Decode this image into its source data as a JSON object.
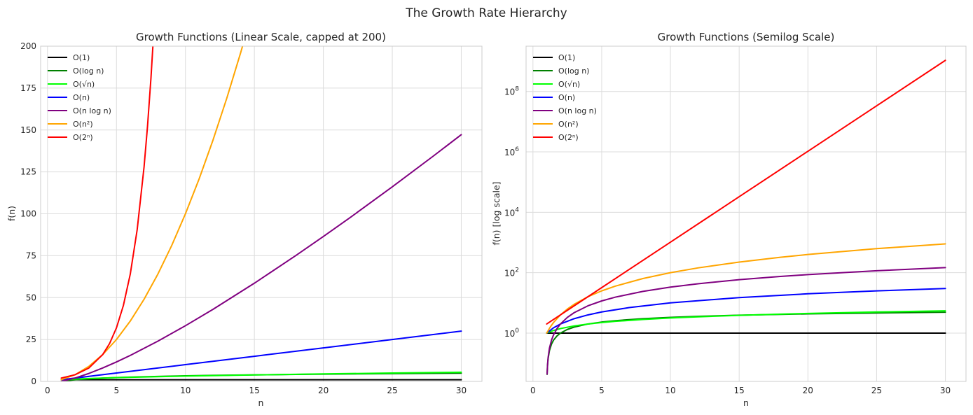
{
  "figure": {
    "suptitle": "The Growth Rate Hierarchy"
  },
  "legend_labels": [
    "O(1)",
    "O(log n)",
    "O(√n)",
    "O(n)",
    "O(n log n)",
    "O(n²)",
    "O(2ⁿ)"
  ],
  "chart_data": [
    {
      "type": "line",
      "title": "Growth Functions (Linear Scale, capped at 200)",
      "xlabel": "n",
      "ylabel": "f(n)",
      "xlim": [
        -0.5,
        31.5
      ],
      "ylim": [
        0,
        200
      ],
      "yscale": "linear",
      "xticks": [
        0,
        5,
        10,
        15,
        20,
        25,
        30
      ],
      "xtick_labels": [
        "0",
        "5",
        "10",
        "15",
        "20",
        "25",
        "30"
      ],
      "yticks": [
        0,
        25,
        50,
        75,
        100,
        125,
        150,
        175,
        200
      ],
      "ytick_labels": [
        "0",
        "25",
        "50",
        "75",
        "100",
        "125",
        "150",
        "175",
        "200"
      ],
      "grid": true,
      "legend_position": "upper-left",
      "series": [
        {
          "name": "O(1)",
          "color": "#000000",
          "x": [
            1,
            2,
            3,
            5,
            10,
            15,
            20,
            25,
            30
          ],
          "y": [
            1,
            1,
            1,
            1,
            1,
            1,
            1,
            1,
            1
          ]
        },
        {
          "name": "O(log n)",
          "color": "#008000",
          "x": [
            1,
            2,
            3,
            4,
            5,
            6,
            8,
            10,
            12,
            15,
            18,
            20,
            25,
            30
          ],
          "y": [
            0,
            1,
            1.58,
            2,
            2.32,
            2.58,
            3,
            3.32,
            3.58,
            3.91,
            4.17,
            4.32,
            4.64,
            4.91
          ]
        },
        {
          "name": "O(√n)",
          "color": "#00ff00",
          "x": [
            1,
            2,
            3,
            4,
            5,
            6,
            8,
            10,
            12,
            15,
            18,
            20,
            25,
            30
          ],
          "y": [
            1,
            1.41,
            1.73,
            2,
            2.24,
            2.45,
            2.83,
            3.16,
            3.46,
            3.87,
            4.24,
            4.47,
            5,
            5.48
          ]
        },
        {
          "name": "O(n)",
          "color": "#0000ff",
          "x": [
            1,
            5,
            10,
            15,
            20,
            25,
            30
          ],
          "y": [
            1,
            5,
            10,
            15,
            20,
            25,
            30
          ]
        },
        {
          "name": "O(n log n)",
          "color": "#800080",
          "x": [
            1,
            2,
            3,
            4,
            5,
            6,
            8,
            10,
            12,
            15,
            18,
            20,
            22,
            25,
            28,
            30
          ],
          "y": [
            0,
            2,
            4.75,
            8,
            11.61,
            15.51,
            24,
            33.22,
            43.02,
            58.6,
            75.06,
            86.44,
            98.1,
            116.1,
            134.6,
            147.2
          ]
        },
        {
          "name": "O(n²)",
          "color": "#ffa500",
          "x": [
            1,
            2,
            3,
            4,
            5,
            6,
            7,
            8,
            9,
            10,
            11,
            12,
            13,
            14,
            14.14
          ],
          "y": [
            1,
            4,
            9,
            16,
            25,
            36,
            49,
            64,
            81,
            100,
            121,
            144,
            169,
            196,
            200
          ]
        },
        {
          "name": "O(2ⁿ)",
          "color": "#ff0000",
          "x": [
            1,
            2,
            3,
            4,
            4.5,
            5,
            5.5,
            6,
            6.5,
            7,
            7.25,
            7.5,
            7.64
          ],
          "y": [
            2,
            4,
            8,
            16,
            22.6,
            32,
            45.3,
            64,
            90.5,
            128,
            152.2,
            181,
            200
          ]
        }
      ]
    },
    {
      "type": "line",
      "title": "Growth Functions (Semilog Scale)",
      "xlabel": "n",
      "ylabel": "f(n) [log scale]",
      "xlim": [
        -0.5,
        31.5
      ],
      "ylim_log10": [
        -1.6,
        9.5
      ],
      "yscale": "log",
      "xticks": [
        0,
        5,
        10,
        15,
        20,
        25,
        30
      ],
      "xtick_labels": [
        "0",
        "5",
        "10",
        "15",
        "20",
        "25",
        "30"
      ],
      "ytick_exponents": [
        0,
        2,
        4,
        6,
        8
      ],
      "ytick_base": "10",
      "ytick_exp_labels": [
        "0",
        "2",
        "4",
        "6",
        "8"
      ],
      "grid": true,
      "legend_position": "upper-left",
      "series": [
        {
          "name": "O(1)",
          "color": "#000000",
          "x": [
            1,
            5,
            10,
            15,
            20,
            25,
            30
          ],
          "y": [
            1,
            1,
            1,
            1,
            1,
            1,
            1
          ]
        },
        {
          "name": "O(log n)",
          "color": "#008000",
          "x": [
            1.03,
            1.06,
            1.1,
            1.2,
            1.35,
            1.5,
            1.75,
            2,
            2.5,
            3,
            4,
            5,
            6,
            8,
            10,
            12,
            15,
            18,
            20,
            25,
            30
          ],
          "y": [
            0.043,
            0.084,
            0.138,
            0.263,
            0.433,
            0.585,
            0.807,
            1,
            1.32,
            1.58,
            2,
            2.32,
            2.58,
            3,
            3.32,
            3.58,
            3.91,
            4.17,
            4.32,
            4.64,
            4.91
          ]
        },
        {
          "name": "O(√n)",
          "color": "#00ff00",
          "x": [
            1,
            1.5,
            2,
            3,
            4,
            5,
            6,
            8,
            10,
            12,
            15,
            18,
            20,
            25,
            30
          ],
          "y": [
            1,
            1.22,
            1.41,
            1.73,
            2,
            2.24,
            2.45,
            2.83,
            3.16,
            3.46,
            3.87,
            4.24,
            4.47,
            5,
            5.48
          ]
        },
        {
          "name": "O(n)",
          "color": "#0000ff",
          "x": [
            1,
            1.5,
            2,
            3,
            4,
            5,
            7,
            10,
            15,
            20,
            25,
            30
          ],
          "y": [
            1,
            1.5,
            2,
            3,
            4,
            5,
            7,
            10,
            15,
            20,
            25,
            30
          ]
        },
        {
          "name": "O(n log n)",
          "color": "#800080",
          "x": [
            1.03,
            1.06,
            1.1,
            1.2,
            1.35,
            1.5,
            1.75,
            2,
            2.5,
            3,
            4,
            5,
            6,
            8,
            10,
            12,
            15,
            18,
            20,
            25,
            30
          ],
          "y": [
            0.044,
            0.089,
            0.151,
            0.316,
            0.585,
            0.877,
            1.41,
            2,
            3.3,
            4.75,
            8,
            11.61,
            15.51,
            24,
            33.22,
            43.02,
            58.6,
            75.06,
            86.44,
            116.1,
            147.2
          ]
        },
        {
          "name": "O(n²)",
          "color": "#ffa500",
          "x": [
            1,
            1.25,
            1.5,
            2,
            2.5,
            3,
            4,
            5,
            6,
            8,
            10,
            12,
            15,
            18,
            20,
            25,
            30
          ],
          "y": [
            1,
            1.56,
            2.25,
            4,
            6.25,
            9,
            16,
            25,
            36,
            64,
            100,
            144,
            225,
            324,
            400,
            625,
            900
          ]
        },
        {
          "name": "O(2ⁿ)",
          "color": "#ff0000",
          "x": [
            1,
            5,
            10,
            15,
            20,
            25,
            30
          ],
          "y": [
            2,
            32,
            1024,
            32768,
            1048576,
            33554432,
            1073741824
          ]
        }
      ]
    }
  ]
}
